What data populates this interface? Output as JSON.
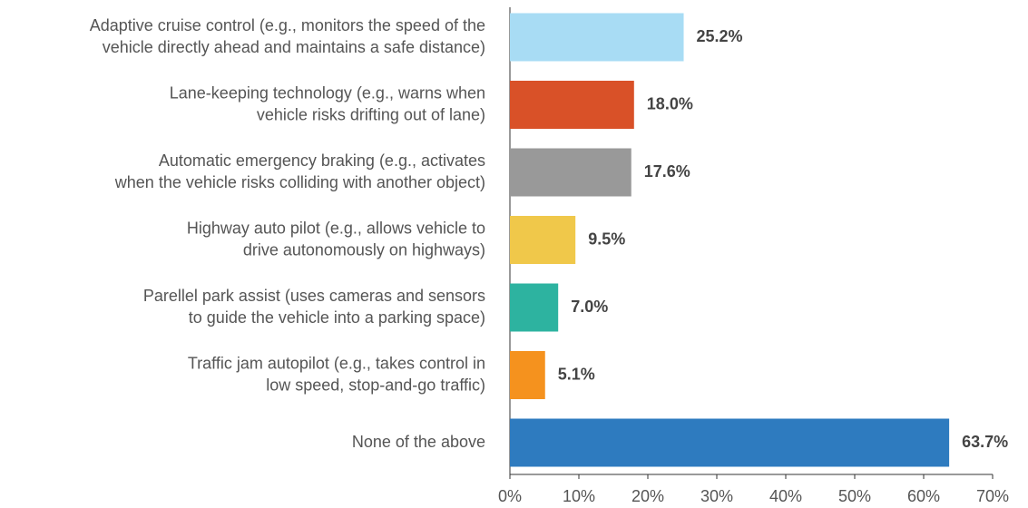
{
  "chart_data": {
    "type": "barh",
    "categories": [
      [
        "Adaptive cruise control (e.g., monitors the speed of the",
        "vehicle directly ahead and maintains a safe distance)"
      ],
      [
        "Lane-keeping technology (e.g., warns when",
        "vehicle risks drifting out of lane)"
      ],
      [
        "Automatic emergency braking (e.g., activates",
        "when the vehicle risks colliding with another object)"
      ],
      [
        "Highway auto pilot (e.g., allows vehicle to",
        "drive autonomously on highways)"
      ],
      [
        "Parellel park assist (uses cameras and sensors",
        "to guide the vehicle into a parking space)"
      ],
      [
        "Traffic jam autopilot (e.g., takes control in",
        "low speed, stop-and-go traffic)"
      ],
      [
        "None of the above"
      ]
    ],
    "values": [
      25.2,
      18.0,
      17.6,
      9.5,
      7.0,
      5.1,
      63.7
    ],
    "value_labels": [
      "25.2%",
      "18.0%",
      "17.6%",
      "9.5%",
      "7.0%",
      "5.1%",
      "63.7%"
    ],
    "colors": [
      "#a8dcf4",
      "#d95128",
      "#999999",
      "#f0c84a",
      "#2db3a0",
      "#f5921e",
      "#2e7bbf"
    ],
    "xlim": [
      0,
      70
    ],
    "xticks": [
      {
        "value": 0,
        "label": "0%"
      },
      {
        "value": 10,
        "label": "10%"
      },
      {
        "value": 20,
        "label": "20%"
      },
      {
        "value": 30,
        "label": "30%"
      },
      {
        "value": 40,
        "label": "40%"
      },
      {
        "value": 50,
        "label": "50%"
      },
      {
        "value": 60,
        "label": "60%"
      },
      {
        "value": 70,
        "label": "70%"
      }
    ]
  }
}
